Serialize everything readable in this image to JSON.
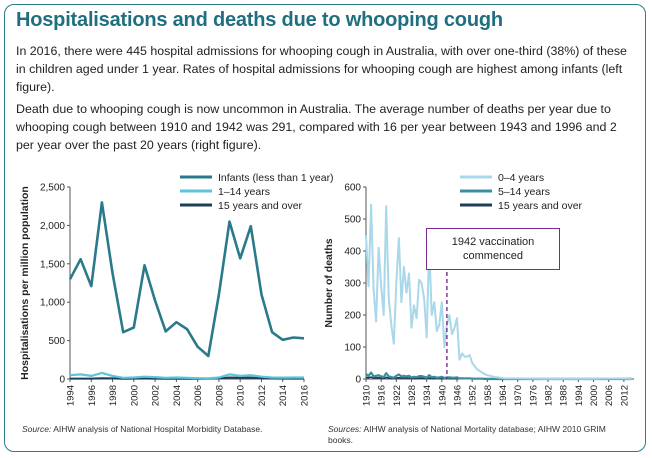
{
  "title": "Hospitalisations and deaths due to whooping cough",
  "paragraphs": [
    "In 2016, there were 445 hospital admissions for whooping cough in Australia, with over one-third (38%) of these in children aged under 1 year. Rates of hospital admissions for whooping cough are highest among infants (left figure).",
    "Death due to whooping cough is now uncommon in Australia. The average number of deaths per year due to whooping cough between 1910 and 1942 was 291, compared with 16 per year between 1943 and 1996 and 2 per year over the past 20 years (right figure)."
  ],
  "colors": {
    "infants": "#2b7a8c",
    "age_1_14": "#5ec3dc",
    "age_15_over": "#1f3d57",
    "light_0_4": "#a9d8ea",
    "mid_5_14": "#3c8da0",
    "annotation": "#7a2c8c",
    "border": "#2e7d8c"
  },
  "sources": {
    "left_label": "Source:",
    "left_text": "AIHW analysis of National Hospital Morbidity Database.",
    "right_label": "Sources:",
    "right_text": "AIHW analysis of National Mortality database; AIHW 2010 GRIM books."
  },
  "chart_data": [
    {
      "type": "line",
      "ylabel": "Hospitalisations per million population",
      "xlabel": "",
      "ylim": [
        0,
        2500
      ],
      "yticks": [
        "0",
        "500",
        "1,000",
        "1,500",
        "2,000",
        "2,500"
      ],
      "xticks": [
        "1994",
        "1996",
        "1998",
        "2000",
        "2002",
        "2004",
        "2006",
        "2008",
        "2010",
        "2012",
        "2014",
        "2016"
      ],
      "x": [
        1994,
        1995,
        1996,
        1997,
        1998,
        1999,
        2000,
        2001,
        2002,
        2003,
        2004,
        2005,
        2006,
        2007,
        2008,
        2009,
        2010,
        2011,
        2012,
        2013,
        2014,
        2015,
        2016
      ],
      "series": [
        {
          "name": "Infants (less than 1 year)",
          "values": [
            1300,
            1560,
            1210,
            2300,
            1380,
            610,
            670,
            1480,
            1020,
            620,
            740,
            650,
            420,
            300,
            1100,
            2050,
            1570,
            1990,
            1100,
            610,
            510,
            540,
            530
          ]
        },
        {
          "name": "1–14 years",
          "values": [
            50,
            60,
            40,
            80,
            40,
            15,
            20,
            30,
            25,
            15,
            20,
            15,
            10,
            8,
            20,
            60,
            40,
            50,
            30,
            20,
            18,
            20,
            20
          ]
        },
        {
          "name": "15 years and over",
          "values": [
            5,
            5,
            5,
            10,
            8,
            3,
            5,
            6,
            5,
            3,
            4,
            3,
            3,
            2,
            8,
            20,
            15,
            18,
            10,
            6,
            5,
            5,
            5
          ]
        }
      ]
    },
    {
      "type": "line",
      "ylabel": "Number of deaths",
      "xlabel": "",
      "ylim": [
        0,
        600
      ],
      "yticks": [
        "0",
        "100",
        "200",
        "300",
        "400",
        "500",
        "600"
      ],
      "xticks": [
        "1910",
        "1916",
        "1922",
        "1928",
        "1934",
        "1940",
        "1946",
        "1952",
        "1958",
        "1964",
        "1970",
        "1976",
        "1982",
        "1988",
        "1994",
        "2000",
        "2006",
        "2012"
      ],
      "x": [
        1910,
        1911,
        1912,
        1913,
        1914,
        1915,
        1916,
        1917,
        1918,
        1919,
        1920,
        1921,
        1922,
        1923,
        1924,
        1925,
        1926,
        1927,
        1928,
        1929,
        1930,
        1931,
        1932,
        1933,
        1934,
        1935,
        1936,
        1937,
        1938,
        1939,
        1940,
        1941,
        1942,
        1943,
        1944,
        1945,
        1946,
        1947,
        1948,
        1949,
        1950,
        1951,
        1952,
        1953,
        1954,
        1955,
        1956,
        1957,
        1958,
        1959,
        1960,
        1961,
        1962,
        1963,
        1964,
        1965,
        1970,
        1980,
        1990,
        2000,
        2010,
        2015
      ],
      "series": [
        {
          "name": "0–4 years",
          "values": [
            450,
            290,
            545,
            280,
            180,
            410,
            290,
            200,
            540,
            250,
            170,
            110,
            300,
            440,
            240,
            350,
            270,
            330,
            160,
            230,
            190,
            310,
            300,
            250,
            130,
            420,
            200,
            240,
            150,
            170,
            240,
            100,
            170,
            200,
            140,
            160,
            190,
            60,
            80,
            70,
            70,
            75,
            50,
            40,
            30,
            25,
            20,
            15,
            12,
            10,
            8,
            6,
            5,
            4,
            3,
            2,
            2,
            1,
            1,
            1,
            2,
            1
          ]
        },
        {
          "name": "5–14 years",
          "values": [
            15,
            10,
            20,
            8,
            10,
            12,
            8,
            6,
            18,
            8,
            6,
            4,
            10,
            14,
            8,
            10,
            8,
            10,
            5,
            7,
            6,
            9,
            9,
            7,
            4,
            12,
            6,
            7,
            4,
            5,
            7,
            3,
            5,
            5,
            4,
            4,
            5,
            2,
            2,
            2,
            2,
            2,
            1,
            1,
            1,
            1,
            1,
            0,
            0,
            0,
            0,
            0,
            0,
            0,
            0,
            0,
            0,
            0,
            0,
            0,
            0,
            0
          ]
        },
        {
          "name": "15 years and over",
          "values": [
            5,
            4,
            6,
            3,
            4,
            4,
            3,
            2,
            5,
            3,
            2,
            2,
            3,
            4,
            3,
            3,
            3,
            3,
            2,
            2,
            2,
            3,
            3,
            2,
            2,
            3,
            2,
            2,
            2,
            2,
            2,
            1,
            2,
            2,
            1,
            1,
            1,
            1,
            1,
            1,
            1,
            1,
            1,
            1,
            1,
            1,
            1,
            1,
            1,
            1,
            1,
            1,
            1,
            1,
            1,
            1,
            1,
            1,
            1,
            1,
            2,
            2
          ]
        }
      ],
      "annotation": {
        "text": "1942 vaccination commenced",
        "x": 1942
      }
    }
  ]
}
